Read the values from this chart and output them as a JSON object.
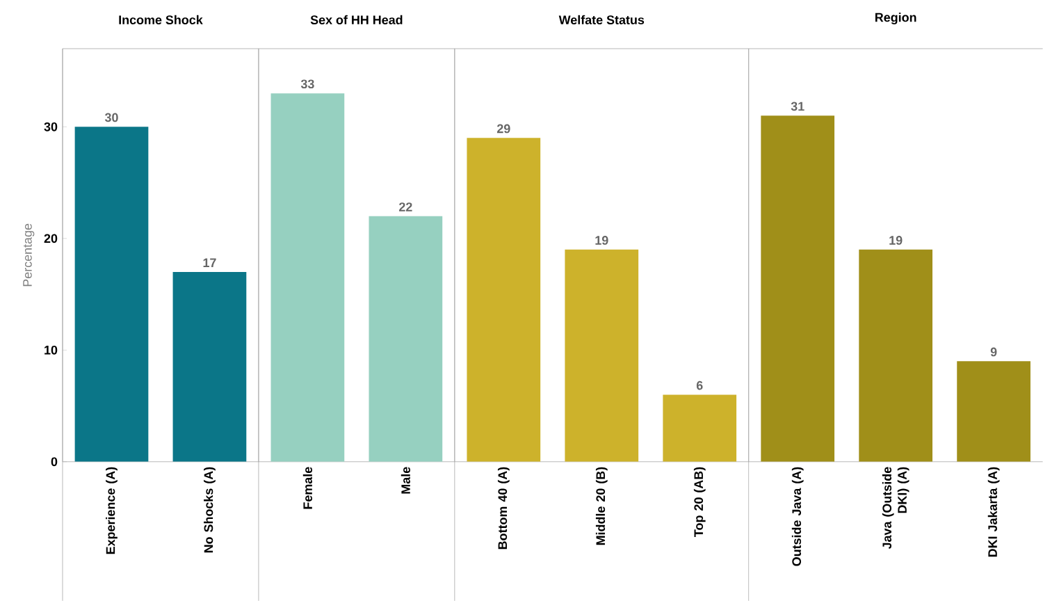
{
  "chart_data": [
    {
      "type": "bar",
      "title": "Income Shock",
      "ylabel": "Percentage",
      "categories": [
        "Experience (A)",
        "No Shocks (A)"
      ],
      "values": [
        30,
        17
      ],
      "color": "#0b7688",
      "ylim": [
        0,
        37
      ],
      "yticks": [
        0,
        10,
        20,
        30
      ],
      "data_labels": true
    },
    {
      "type": "bar",
      "title": "Sex of HH Head",
      "categories": [
        "Female",
        "Male"
      ],
      "values": [
        33,
        22
      ],
      "color": "#96d0c0",
      "ylim": [
        0,
        37
      ],
      "yticks": [
        0,
        10,
        20,
        30
      ],
      "data_labels": true,
      "tick_labels": "x"
    },
    {
      "type": "bar",
      "title": "Welfate Status",
      "categories": [
        "Bottom 40 (A)",
        "Middle 20 (B)",
        "Top 20 (AB)"
      ],
      "values": [
        29,
        19,
        6
      ],
      "color": "#cdb22b",
      "ylim": [
        0,
        37
      ],
      "yticks": [
        0,
        10,
        20,
        30
      ],
      "data_labels": true,
      "tick_labels": "x"
    },
    {
      "type": "bar",
      "title": "Region",
      "categories": [
        "Outside Java (A)",
        "Java (Outside DKI) (A)",
        "DKI Jakarta (A)"
      ],
      "values": [
        31,
        19,
        9
      ],
      "color": "#a08f19",
      "ylim": [
        0,
        37
      ],
      "yticks": [
        0,
        10,
        20,
        30
      ],
      "data_labels": true,
      "tick_labels": "x"
    }
  ]
}
